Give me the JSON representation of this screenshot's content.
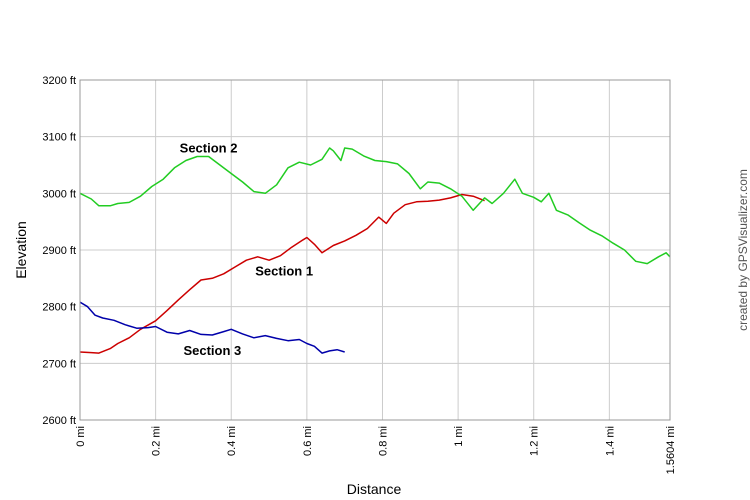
{
  "chart_data": {
    "type": "line",
    "xlabel": "Distance",
    "ylabel": "Elevation",
    "credit": "created by GPSVisualizer.com",
    "xlim": [
      0,
      1.5604
    ],
    "ylim": [
      2600,
      3200
    ],
    "x_ticks": [
      {
        "value": 0,
        "label": "0 mi"
      },
      {
        "value": 0.2,
        "label": "0.2 mi"
      },
      {
        "value": 0.4,
        "label": "0.4 mi"
      },
      {
        "value": 0.6,
        "label": "0.6 mi"
      },
      {
        "value": 0.8,
        "label": "0.8 mi"
      },
      {
        "value": 1.0,
        "label": "1 mi"
      },
      {
        "value": 1.2,
        "label": "1.2 mi"
      },
      {
        "value": 1.4,
        "label": "1.4 mi"
      },
      {
        "value": 1.5604,
        "label": "1.5604 mi"
      }
    ],
    "y_ticks": [
      {
        "value": 2600,
        "label": "2600 ft"
      },
      {
        "value": 2700,
        "label": "2700 ft"
      },
      {
        "value": 2800,
        "label": "2800 ft"
      },
      {
        "value": 2900,
        "label": "2900 ft"
      },
      {
        "value": 3000,
        "label": "3000 ft"
      },
      {
        "value": 3100,
        "label": "3100 ft"
      },
      {
        "value": 3200,
        "label": "3200 ft"
      }
    ],
    "grid": true,
    "series": [
      {
        "name": "Section 1",
        "color": "#cc0000",
        "x": [
          0,
          0.03,
          0.05,
          0.08,
          0.1,
          0.13,
          0.16,
          0.2,
          0.23,
          0.26,
          0.29,
          0.32,
          0.35,
          0.38,
          0.41,
          0.44,
          0.47,
          0.5,
          0.53,
          0.56,
          0.59,
          0.6,
          0.62,
          0.64,
          0.67,
          0.7,
          0.73,
          0.76,
          0.79,
          0.81,
          0.83,
          0.86,
          0.89,
          0.92,
          0.95,
          0.98,
          1.01,
          1.04,
          1.07
        ],
        "y": [
          2720,
          2719,
          2718,
          2726,
          2735,
          2745,
          2760,
          2775,
          2793,
          2812,
          2830,
          2847,
          2850,
          2858,
          2870,
          2882,
          2888,
          2882,
          2890,
          2905,
          2918,
          2922,
          2910,
          2895,
          2908,
          2916,
          2926,
          2938,
          2958,
          2947,
          2965,
          2980,
          2985,
          2986,
          2988,
          2992,
          2998,
          2995,
          2987
        ]
      },
      {
        "name": "Section 2",
        "color": "#22cc22",
        "x": [
          0,
          0.03,
          0.05,
          0.08,
          0.1,
          0.13,
          0.16,
          0.19,
          0.22,
          0.25,
          0.28,
          0.31,
          0.34,
          0.37,
          0.4,
          0.43,
          0.46,
          0.49,
          0.52,
          0.55,
          0.58,
          0.61,
          0.64,
          0.66,
          0.67,
          0.69,
          0.7,
          0.72,
          0.75,
          0.78,
          0.81,
          0.84,
          0.87,
          0.9,
          0.92,
          0.95,
          0.98,
          1.01,
          1.04,
          1.07,
          1.09,
          1.12,
          1.15,
          1.17,
          1.2,
          1.22,
          1.24,
          1.26,
          1.29,
          1.32,
          1.35,
          1.38,
          1.41,
          1.44,
          1.47,
          1.5,
          1.53,
          1.55,
          1.5604
        ],
        "y": [
          3000,
          2990,
          2978,
          2978,
          2982,
          2984,
          2995,
          3012,
          3025,
          3045,
          3058,
          3065,
          3065,
          3050,
          3035,
          3020,
          3003,
          3000,
          3015,
          3045,
          3055,
          3050,
          3060,
          3080,
          3075,
          3058,
          3080,
          3078,
          3066,
          3058,
          3056,
          3052,
          3035,
          3008,
          3020,
          3018,
          3008,
          2995,
          2970,
          2992,
          2982,
          3000,
          3025,
          3000,
          2993,
          2985,
          3000,
          2970,
          2962,
          2948,
          2935,
          2925,
          2912,
          2900,
          2880,
          2876,
          2888,
          2895,
          2888
        ]
      },
      {
        "name": "Section 3",
        "color": "#0000aa",
        "x": [
          0,
          0.02,
          0.04,
          0.06,
          0.09,
          0.12,
          0.15,
          0.18,
          0.2,
          0.23,
          0.26,
          0.29,
          0.32,
          0.35,
          0.38,
          0.4,
          0.43,
          0.46,
          0.49,
          0.52,
          0.55,
          0.58,
          0.6,
          0.62,
          0.64,
          0.66,
          0.68,
          0.7
        ],
        "y": [
          2808,
          2800,
          2785,
          2780,
          2776,
          2768,
          2762,
          2763,
          2765,
          2755,
          2752,
          2758,
          2751,
          2750,
          2756,
          2760,
          2752,
          2745,
          2749,
          2744,
          2740,
          2742,
          2735,
          2730,
          2718,
          2722,
          2724,
          2720
        ]
      }
    ],
    "annotations": [
      {
        "text": "Section 2",
        "x": 0.34,
        "y": 3072
      },
      {
        "text": "Section 1",
        "x": 0.54,
        "y": 2855
      },
      {
        "text": "Section 3",
        "x": 0.35,
        "y": 2715
      }
    ]
  }
}
